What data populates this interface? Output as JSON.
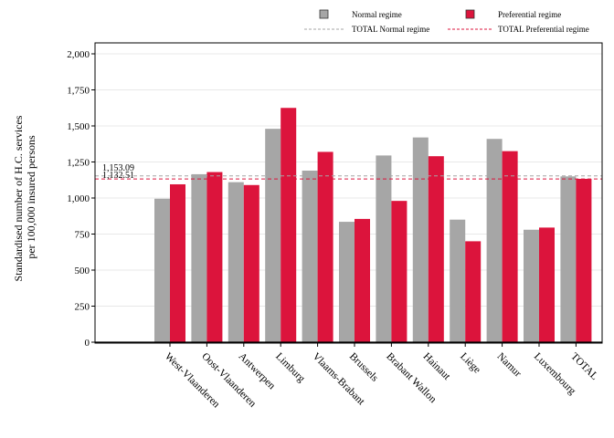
{
  "chart_data": {
    "type": "bar",
    "ylabel_lines": [
      "Standardised number of H.C. services",
      "per 100,000 insured persons"
    ],
    "xlabel": "",
    "categories": [
      "West-Vlaanderen",
      "Oost-Vlaanderen",
      "Antwerpen",
      "Limburg",
      "Vlaams-Brabant",
      "Brussels",
      "Brabant Wallon",
      "Hainaut",
      "Liège",
      "Namur",
      "Luxembourg",
      "TOTAL"
    ],
    "series": [
      {
        "name": "Normal regime",
        "color": "#A6A6A6",
        "values": [
          995,
          1165,
          1110,
          1480,
          1190,
          835,
          1295,
          1420,
          850,
          1410,
          780,
          1150
        ]
      },
      {
        "name": "Preferential regime",
        "color": "#DC143C",
        "values": [
          1095,
          1180,
          1090,
          1625,
          1320,
          855,
          980,
          1290,
          700,
          1325,
          795,
          1133
        ]
      }
    ],
    "reference_lines": [
      {
        "name": "TOTAL Normal regime",
        "value": 1153.09,
        "label": "1,153.09",
        "color": "#A6A6A6",
        "dash": "dashed"
      },
      {
        "name": "TOTAL Preferential regime",
        "value": 1132.51,
        "label": "1,132.51",
        "color": "#DC143C",
        "dash": "dashed"
      }
    ],
    "ylim": [
      0,
      2000
    ],
    "yticks": [
      "0",
      "250",
      "500",
      "750",
      "1,000",
      "1,250",
      "1,500",
      "1,750",
      "2,000"
    ],
    "grid": true,
    "legend_placement": "top-right"
  }
}
